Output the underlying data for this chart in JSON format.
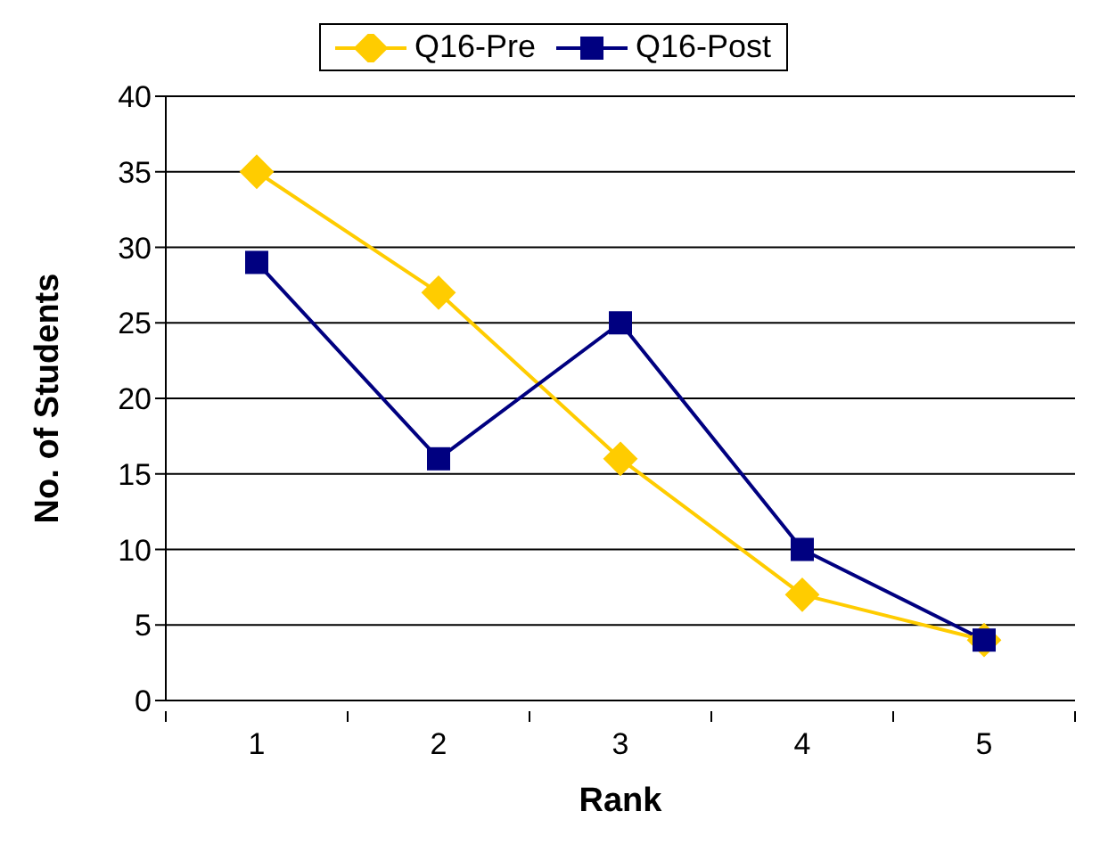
{
  "chart_data": {
    "type": "line",
    "xlabel": "Rank",
    "ylabel": "No. of Students",
    "categories": [
      "1",
      "2",
      "3",
      "4",
      "5"
    ],
    "series": [
      {
        "name": "Q16-Pre",
        "color": "#ffcc00",
        "marker": "diamond",
        "values": [
          35,
          27,
          16,
          7,
          4
        ]
      },
      {
        "name": "Q16-Post",
        "color": "#000080",
        "marker": "square",
        "values": [
          29,
          16,
          25,
          10,
          4
        ]
      }
    ],
    "ylim": [
      0,
      40
    ],
    "yticks": [
      0,
      5,
      10,
      15,
      20,
      25,
      30,
      35,
      40
    ],
    "grid": "y",
    "legend": "top"
  }
}
